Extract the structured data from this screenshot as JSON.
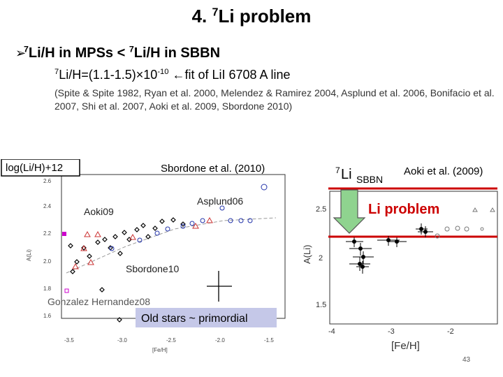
{
  "slide": {
    "title": "4. 7Li problem",
    "title_sup": "7",
    "title_rest": "Li problem",
    "title_prefix": "4. ",
    "bullet": "➢",
    "line1": {
      "sup1": "7",
      "part1": "Li/H in MPSs < ",
      "sup2": "7",
      "part2": "Li/H in SBBN"
    },
    "line2": {
      "sup": "7",
      "text1": "Li/H=(1.1-1.5)×10",
      "exp": "-10",
      "text2": " ←fit of LiI 6708 A line"
    },
    "references": "(Spite & Spite 1982, Ryan et al. 2000, Melendez & Ramirez 2004, Asplund et al.  2006, Bonifacio et al. 2007, Shi et al. 2007, Aoki et al. 2009, Sbordone 2010)",
    "page_number": "43"
  },
  "left_plot": {
    "ylabel_box": "log(Li/H)+12",
    "source": "Sbordone et al. (2010)",
    "labels": {
      "asplund": "Asplund06",
      "aoki": "Aoki09",
      "sbordone": "Sbordone10",
      "gonzalez": "Gonzalez Hernandez08"
    },
    "old_stars": "Old stars ~ primordial",
    "axis_ylabel": "A(Li)",
    "axis_xlabel": "[Fe/H]",
    "yticks": [
      "2.6",
      "2.4",
      "2.2",
      "2.0",
      "1.8",
      "1.6"
    ],
    "xticks": [
      "-3.5",
      "-3.0",
      "-2.5",
      "-2.0",
      "-1.5"
    ]
  },
  "right_plot": {
    "li_sup": "7",
    "li_text": "Li",
    "li_sub": "SBBN",
    "source": "Aoki et al. (2009)",
    "problem": "Li problem",
    "axis_ylabel": "A(Li)",
    "axis_xlabel": "[Fe/H]",
    "yticks": [
      "2.5",
      "2",
      "1.5"
    ],
    "xticks": [
      "-4",
      "-3",
      "-2"
    ]
  },
  "colors": {
    "accent_red": "#cc0000",
    "arrow_green": "#8fd38f",
    "highlight_box": "#c5c8e8",
    "series_blue": "#2233aa",
    "series_red": "#cc3333",
    "series_magenta": "#cc00cc"
  }
}
